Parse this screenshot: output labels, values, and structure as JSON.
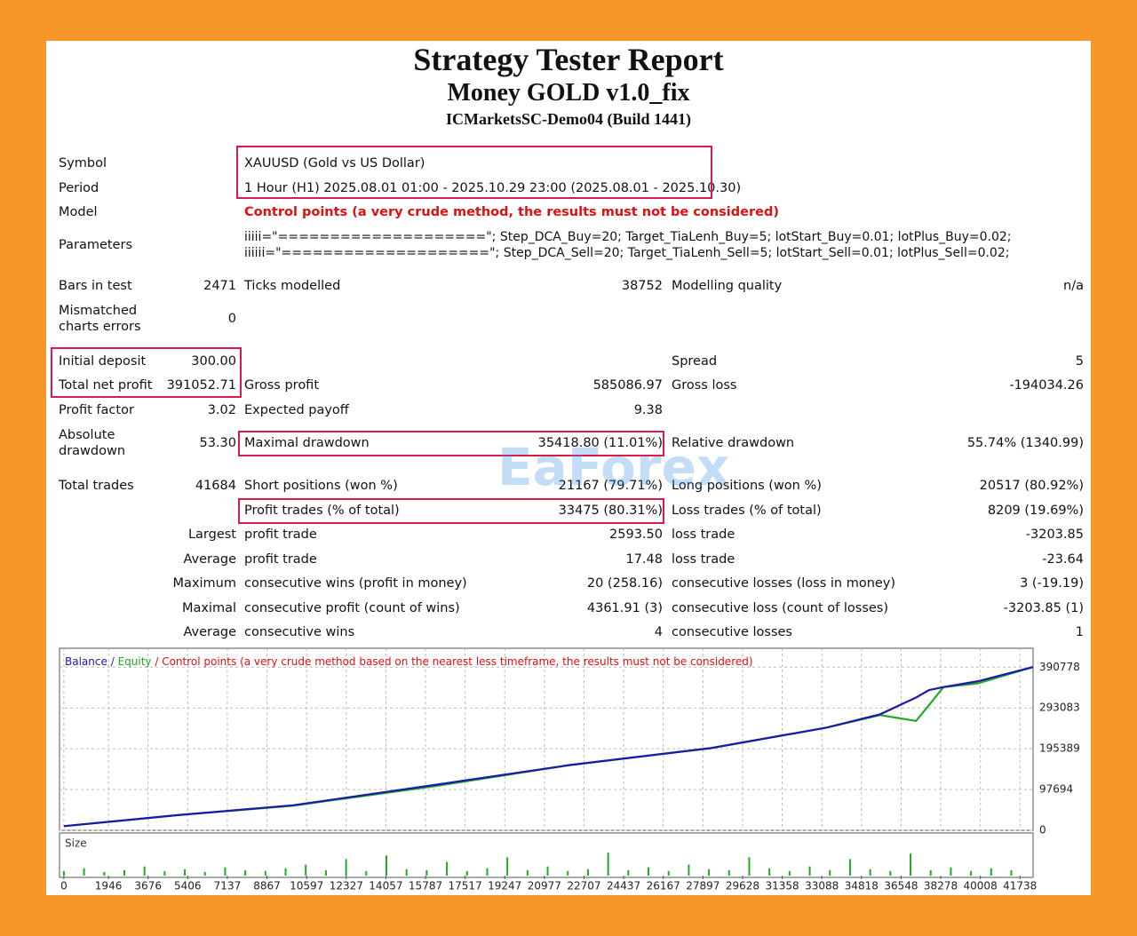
{
  "header": {
    "title": "Strategy Tester Report",
    "subtitle": "Money GOLD v1.0_fix",
    "server": "ICMarketsSC-Demo04 (Build 1441)"
  },
  "info": {
    "symbol_label": "Symbol",
    "symbol": "XAUUSD (Gold vs US Dollar)",
    "period_label": "Period",
    "period": "1 Hour (H1) 2025.08.01 01:00 - 2025.10.29 23:00 (2025.08.01 - 2025.10.30)",
    "model_label": "Model",
    "model": "Control points (a very crude method, the results must not be considered)",
    "parameters_label": "Parameters",
    "parameters": [
      "iiiii=\"====================\"; Step_DCA_Buy=20; Target_TiaLenh_Buy=5; lotStart_Buy=0.01; lotPlus_Buy=0.02;",
      "iiiiii=\"====================\"; Step_DCA_Sell=20; Target_TiaLenh_Sell=5; lotStart_Sell=0.01; lotPlus_Sell=0.02;"
    ]
  },
  "table": {
    "rows": [
      [
        "Bars in test",
        "2471",
        "Ticks modelled",
        "38752",
        "Modelling quality",
        "n/a"
      ],
      [
        "Mismatched charts errors",
        "0",
        null,
        null,
        null,
        null
      ],
      [
        "Initial deposit",
        "300.00",
        null,
        null,
        "Spread",
        "5"
      ],
      [
        "Total net profit",
        "391052.71",
        "Gross profit",
        "585086.97",
        "Gross loss",
        "-194034.26"
      ],
      [
        "Profit factor",
        "3.02",
        "Expected payoff",
        "9.38",
        null,
        null
      ],
      [
        "Absolute drawdown",
        "53.30",
        "Maximal drawdown",
        "35418.80 (11.01%)",
        "Relative drawdown",
        "55.74% (1340.99)"
      ],
      [
        "Total trades",
        "41684",
        "Short positions (won %)",
        "21167 (79.71%)",
        "Long positions (won %)",
        "20517 (80.92%)"
      ],
      [
        null,
        null,
        "Profit trades (% of total)",
        "33475 (80.31%)",
        "Loss trades (% of total)",
        "8209 (19.69%)"
      ],
      [
        null,
        "Largest",
        "profit trade",
        "2593.50",
        "loss trade",
        "-3203.85"
      ],
      [
        null,
        "Average",
        "profit trade",
        "17.48",
        "loss trade",
        "-23.64"
      ],
      [
        null,
        "Maximum",
        "consecutive wins (profit in money)",
        "20 (258.16)",
        "consecutive losses (loss in money)",
        "3 (-19.19)"
      ],
      [
        null,
        "Maximal",
        "consecutive profit (count of wins)",
        "4361.91 (3)",
        "consecutive loss (count of losses)",
        "-3203.85 (1)"
      ],
      [
        null,
        "Average",
        "consecutive wins",
        "4",
        "consecutive losses",
        "1"
      ]
    ]
  },
  "watermark": "EaForex",
  "chart_data": [
    {
      "type": "line",
      "legend_separator": "/",
      "note": "/ Control points (a very crude method based on the nearest less timeframe, the results must not be considered)",
      "x": [
        0,
        4970,
        10000,
        16230,
        22050,
        28260,
        33300,
        35640,
        37200,
        37770,
        38400,
        39900,
        42300
      ],
      "series": [
        {
          "name": "Equity",
          "color": "#22aa22",
          "values": [
            10000,
            36400,
            59000,
            106000,
            156000,
            197000,
            246000,
            276000,
            262000,
            300000,
            343000,
            352000,
            391000
          ]
        },
        {
          "name": "Balance",
          "color": "#1a1aa8",
          "values": [
            10000,
            36400,
            60000,
            109000,
            156000,
            197000,
            246000,
            278000,
            318000,
            336000,
            343000,
            357000,
            391000
          ]
        }
      ],
      "xlim": [
        -190,
        42310
      ],
      "ylim": [
        0,
        436000
      ],
      "yticks": [
        0,
        97694,
        195389,
        293083,
        390778
      ],
      "grid": true
    },
    {
      "type": "bar",
      "title": "Size",
      "color": "#22aa22",
      "x": [
        0,
        880,
        1760,
        2640,
        3520,
        4400,
        5280,
        6160,
        7040,
        7920,
        8800,
        9680,
        10560,
        11440,
        12320,
        13200,
        14080,
        14960,
        15840,
        16720,
        17600,
        18480,
        19360,
        20240,
        21120,
        22000,
        22880,
        23760,
        24640,
        25520,
        26400,
        27280,
        28160,
        29040,
        29920,
        30800,
        31680,
        32560,
        33440,
        34320,
        35200,
        36080,
        36960,
        37840,
        38720,
        39600,
        40480,
        41360
      ],
      "values": [
        0.05,
        0.08,
        0.04,
        0.06,
        0.1,
        0.05,
        0.07,
        0.04,
        0.09,
        0.06,
        0.05,
        0.08,
        0.12,
        0.06,
        0.18,
        0.05,
        0.22,
        0.07,
        0.06,
        0.15,
        0.05,
        0.08,
        0.2,
        0.06,
        0.1,
        0.05,
        0.07,
        0.25,
        0.06,
        0.09,
        0.05,
        0.12,
        0.07,
        0.06,
        0.2,
        0.08,
        0.05,
        0.1,
        0.06,
        0.18,
        0.07,
        0.05,
        0.24,
        0.06,
        0.09,
        0.05,
        0.08,
        0.06
      ],
      "xlim": [
        -190,
        42310
      ],
      "ylim": [
        0,
        0.3
      ],
      "xticks": [
        0,
        1946,
        3676,
        5406,
        7137,
        8867,
        10597,
        12327,
        14057,
        15787,
        17517,
        19247,
        20977,
        22707,
        24437,
        26167,
        27897,
        29628,
        31358,
        33088,
        34818,
        36548,
        38278,
        40008,
        41738
      ]
    }
  ]
}
